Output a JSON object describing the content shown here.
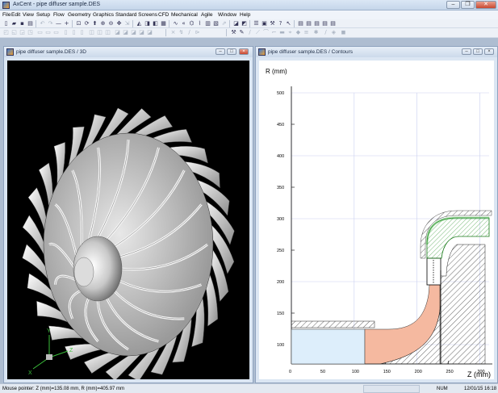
{
  "app": {
    "title": "AxCent - pipe diffuser sample.DES"
  },
  "menu": {
    "items": [
      "File",
      "Edit",
      "View",
      "Setup",
      "Flow",
      "Geometry",
      "Graphics",
      "Standard Screens",
      "CFD",
      "Mechanical",
      "Agile",
      "Window",
      "Help"
    ]
  },
  "window3d": {
    "title": "pipe diffuser sample.DES / 3D",
    "axes": {
      "y": "Y",
      "x": "X",
      "z": "Z"
    }
  },
  "contours": {
    "title": "pipe diffuser sample.DES / Contours",
    "ylabel": "R (mm)",
    "xlabel": "Z (mm)",
    "y_ticks": [
      "500",
      "450",
      "400",
      "350",
      "300",
      "250",
      "200",
      "150",
      "100"
    ],
    "x_ticks": [
      "0",
      "50",
      "100",
      "150",
      "200",
      "250",
      "300"
    ]
  },
  "status": {
    "pointer": "Mouse pointer: Z (mm)=135.08 mm, R (mm)=405.97 mm",
    "num": "NUM",
    "datetime": "12/01/15  16:18"
  }
}
